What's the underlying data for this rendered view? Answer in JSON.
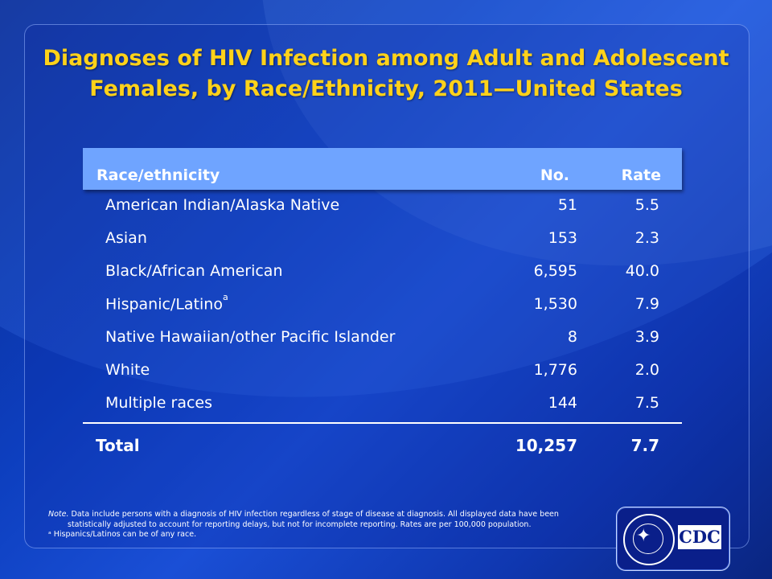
{
  "title": "Diagnoses of HIV Infection among Adult and Adolescent Females, by Race/Ethnicity, 2011—United States",
  "table": {
    "headers": {
      "race": "Race/ethnicity",
      "no": "No.",
      "rate": "Rate"
    },
    "rows": [
      {
        "race": "American Indian/Alaska Native",
        "no": "51",
        "rate": "5.5"
      },
      {
        "race": "Asian",
        "no": "153",
        "rate": "2.3"
      },
      {
        "race": "Black/African American",
        "no": "6,595",
        "rate": "40.0"
      },
      {
        "race": "Hispanic/Latino",
        "sup": "a",
        "no": "1,530",
        "rate": "7.9"
      },
      {
        "race": "Native Hawaiian/other Pacific Islander",
        "no": "8",
        "rate": "3.9"
      },
      {
        "race": "White",
        "no": "1,776",
        "rate": "2.0"
      },
      {
        "race": "Multiple races",
        "no": "144",
        "rate": "7.5"
      }
    ],
    "total": {
      "label": "Total",
      "no": "10,257",
      "rate": "7.7"
    }
  },
  "footnote": {
    "note_label": "Note.",
    "note_text": "Data include persons with a diagnosis of HIV infection regardless of stage of  disease at diagnosis. All displayed data have been",
    "note_text2": "statistically adjusted to account for reporting delays, but not for incomplete reporting.  Rates are per 100,000 population.",
    "footnote_a": "ᵃ Hispanics/Latinos can be of any race."
  },
  "logo": {
    "text": "CDC",
    "icon": "hhs-seal-icon"
  },
  "colors": {
    "title": "#ffd21a",
    "header_bg": "#6fa4ff",
    "background": "#0d3fbf"
  }
}
